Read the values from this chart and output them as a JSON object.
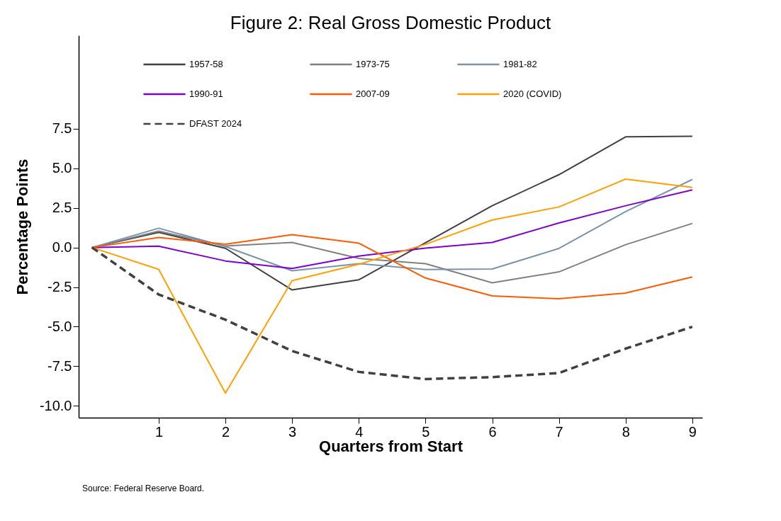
{
  "chart_data": {
    "type": "line",
    "title": "Figure 2: Real Gross Domestic Product",
    "xlabel": "Quarters from Start",
    "ylabel": "Percentage Points",
    "annotations": [
      "Source: Federal Reserve Board."
    ],
    "x": [
      0,
      1,
      2,
      3,
      4,
      5,
      6,
      7,
      8,
      9
    ],
    "xlim": [
      -0.2,
      9.15
    ],
    "xticks": [
      1,
      2,
      3,
      4,
      5,
      6,
      7,
      8,
      9
    ],
    "ylim": [
      -10.75,
      13.4
    ],
    "yticks": [
      {
        "value": -10,
        "label": "-10.0"
      },
      -7.5,
      {
        "value": -5,
        "label": "-5.0"
      },
      -2.5,
      {
        "value": 0,
        "label": "0.0"
      },
      2.5,
      {
        "value": 5,
        "label": "5.0"
      },
      7.5
    ],
    "grid": false,
    "legend": "top",
    "line_style": "solid",
    "marker": "none",
    "series": [
      {
        "name": "1957-58",
        "color": "#404040",
        "values": [
          0,
          0.96,
          -0.05,
          -2.68,
          -2.04,
          0.3,
          2.64,
          4.6,
          6.99,
          7.03
        ]
      },
      {
        "name": "1973-75",
        "color": "#808080",
        "values": [
          0,
          1.03,
          0.09,
          0.32,
          -0.69,
          -1.02,
          -2.23,
          -1.54,
          0.18,
          1.52
        ]
      },
      {
        "name": "1981-82",
        "color": "#7a93ad",
        "values": [
          0,
          1.22,
          0.06,
          -1.47,
          -1.02,
          -1.39,
          -1.36,
          -0.06,
          2.27,
          4.3
        ]
      },
      {
        "name": "1990-91",
        "color": "#8000d0",
        "values": [
          0,
          0.08,
          -0.85,
          -1.32,
          -0.54,
          -0.04,
          0.32,
          1.55,
          2.64,
          3.64
        ]
      },
      {
        "name": "2007-09",
        "color": "#ff5a00",
        "values": [
          0,
          0.63,
          0.21,
          0.81,
          0.27,
          -1.93,
          -3.06,
          -3.24,
          -2.88,
          -1.86
        ]
      },
      {
        "name": "2020 (COVID)",
        "color": "#ffa000",
        "values": [
          0,
          -1.38,
          -9.2,
          -2.1,
          -1.06,
          0.2,
          1.74,
          2.56,
          4.32,
          3.8
        ]
      },
      {
        "name": "DFAST 2024",
        "color": "#404040",
        "line_style": "dashed",
        "values": [
          0,
          -2.97,
          -4.56,
          -6.54,
          -7.86,
          -8.31,
          -8.19,
          -7.93,
          -6.39,
          -5.01
        ]
      }
    ]
  }
}
